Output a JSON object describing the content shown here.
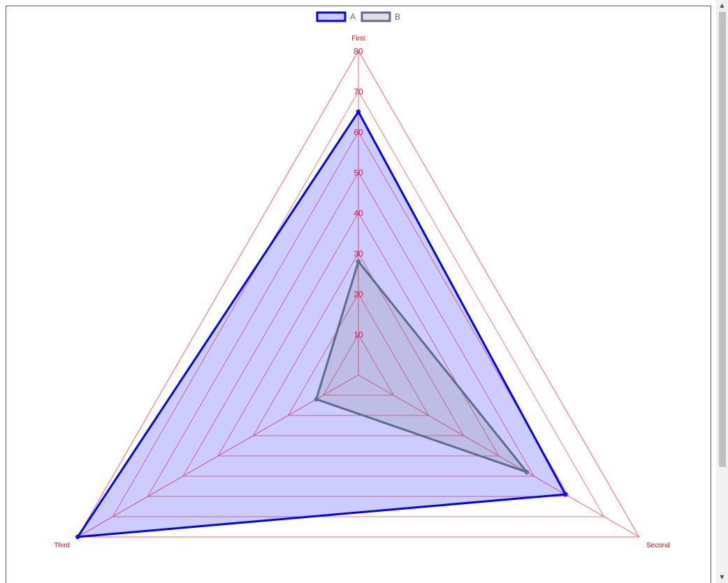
{
  "chart_data": {
    "type": "radar",
    "axes": [
      "First",
      "Second",
      "Third"
    ],
    "r_ticks": [
      10,
      20,
      30,
      40,
      50,
      60,
      70,
      80
    ],
    "r_range": [
      0,
      80
    ],
    "legend_position": "top",
    "series": [
      {
        "name": "A",
        "values": [
          65,
          59,
          80
        ],
        "stroke": "#0000ff",
        "fill": "rgba(0,0,255,0.2)",
        "legend_fill": "#ccccff"
      },
      {
        "name": "B",
        "values": [
          28,
          48,
          12
        ],
        "stroke": "#5e6a8f",
        "fill": "rgba(128,128,128,0.2)",
        "legend_fill": "#e0e0e0"
      }
    ],
    "grid_color": "#ff6060",
    "tick_color": "#dd1144",
    "label_color": "#ff0000"
  },
  "colors": {
    "frame_border": "#5a5a5a",
    "scrollbar_track": "#f1f1f1",
    "scrollbar_thumb": "#c1c1c1"
  },
  "scrollbar": {
    "up_glyph": "▲",
    "down_glyph": "▼"
  }
}
